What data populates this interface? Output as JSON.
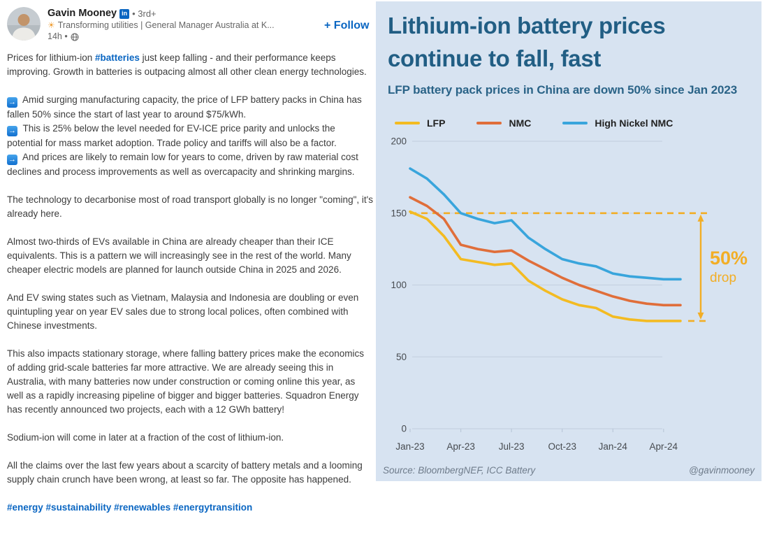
{
  "post": {
    "brand_color": "#0a66c2",
    "arrow_glyph": "→",
    "author": {
      "name": "Gavin Mooney",
      "badge": "in",
      "degree": "• 3rd+",
      "headline": "Transforming utilities | General Manager Australia at K...",
      "time": "14h •"
    },
    "follow_label": "+ Follow",
    "blocks": [
      {
        "spaced": true,
        "seg": [
          {
            "t": "x",
            "s": "Prices for lithium-ion "
          },
          {
            "t": "l",
            "s": "#batteries"
          },
          {
            "t": "x",
            "s": " just keep falling - and their performance keeps improving. Growth in batteries is outpacing almost all other clean energy technologies."
          }
        ]
      },
      {
        "spaced": false,
        "seg": [
          {
            "t": "a"
          },
          {
            "t": "x",
            "s": " Amid surging manufacturing capacity, the price of LFP battery packs in China has fallen 50% since the start of last year to around $75/kWh."
          }
        ]
      },
      {
        "spaced": false,
        "seg": [
          {
            "t": "a"
          },
          {
            "t": "x",
            "s": " This is 25% below the level needed for EV-ICE price parity and unlocks the potential for mass market adoption. Trade policy and tariffs will also be a factor."
          }
        ]
      },
      {
        "spaced": true,
        "seg": [
          {
            "t": "a"
          },
          {
            "t": "x",
            "s": " And prices are likely to remain low for years to come, driven by raw material cost declines and process improvements as well as overcapacity and shrinking margins."
          }
        ]
      },
      {
        "spaced": true,
        "seg": [
          {
            "t": "x",
            "s": "The technology to decarbonise most of road transport globally is no longer \"coming\", it's already here."
          }
        ]
      },
      {
        "spaced": true,
        "seg": [
          {
            "t": "x",
            "s": "Almost two-thirds of EVs available in China are already cheaper than their ICE equivalents. This is a pattern we will increasingly see in the rest of the world. Many cheaper electric models are planned for launch outside China in 2025 and 2026."
          }
        ]
      },
      {
        "spaced": true,
        "seg": [
          {
            "t": "x",
            "s": "And EV swing states such as Vietnam, Malaysia and Indonesia are doubling or even quintupling year on year EV sales due to strong local polices, often combined with Chinese investments."
          }
        ]
      },
      {
        "spaced": true,
        "seg": [
          {
            "t": "x",
            "s": "This also impacts stationary storage, where falling battery prices make the economics of adding grid-scale batteries far more attractive. We are already seeing this in Australia, with many batteries now under construction or coming online this year, as well as a rapidly increasing pipeline of bigger and bigger batteries. Squadron Energy has recently announced two projects, each with a 12 GWh battery!"
          }
        ]
      },
      {
        "spaced": true,
        "seg": [
          {
            "t": "x",
            "s": "Sodium-ion will come in later at a fraction of the cost of lithium-ion."
          }
        ]
      },
      {
        "spaced": true,
        "seg": [
          {
            "t": "x",
            "s": "All the claims over the last few years about a scarcity of battery metals and a looming supply chain crunch have been wrong, at least so far. The opposite has happened."
          }
        ]
      },
      {
        "spaced": false,
        "seg": [
          {
            "t": "l",
            "s": "#energy"
          },
          {
            "t": "x",
            "s": " "
          },
          {
            "t": "l",
            "s": "#sustainability"
          },
          {
            "t": "x",
            "s": " "
          },
          {
            "t": "l",
            "s": "#renewables"
          },
          {
            "t": "x",
            "s": " "
          },
          {
            "t": "l",
            "s": "#energytransition"
          }
        ]
      }
    ]
  },
  "chart_data": {
    "type": "line",
    "title": "Lithium-ion battery prices continue to fall, fast",
    "subtitle": "LFP battery pack prices in China are down 50% since Jan 2023",
    "background": "#d7e3f1",
    "title_color": "#215e84",
    "grid": true,
    "legend_position": "top",
    "xlabel": "",
    "ylabel": "",
    "ylim": [
      0,
      200
    ],
    "yticks": [
      0,
      50,
      100,
      150,
      200
    ],
    "x": [
      "Jan-23",
      "Feb-23",
      "Mar-23",
      "Apr-23",
      "May-23",
      "Jun-23",
      "Jul-23",
      "Aug-23",
      "Sep-23",
      "Oct-23",
      "Nov-23",
      "Dec-23",
      "Jan-24",
      "Feb-24",
      "Mar-24",
      "Apr-24",
      "May-24"
    ],
    "x_tick_labels": [
      "Jan-23",
      "Apr-23",
      "Jul-23",
      "Oct-23",
      "Jan-24",
      "Apr-24"
    ],
    "series": [
      {
        "name": "LFP",
        "color": "#f3bb22",
        "values": [
          151,
          146,
          134,
          118,
          116,
          114,
          115,
          103,
          96,
          90,
          86,
          84,
          78,
          76,
          75,
          75,
          75
        ]
      },
      {
        "name": "NMC",
        "color": "#e06e3a",
        "values": [
          161,
          155,
          146,
          128,
          125,
          123,
          124,
          117,
          111,
          105,
          100,
          96,
          92,
          89,
          87,
          86,
          86
        ]
      },
      {
        "name": "High Nickel NMC",
        "color": "#39a5dc",
        "values": [
          181,
          174,
          163,
          150,
          146,
          143,
          145,
          133,
          125,
          118,
          115,
          113,
          108,
          106,
          105,
          104,
          104
        ]
      }
    ],
    "annotation": {
      "label_main": "50%",
      "label_sub": "drop",
      "ref_high": 150,
      "ref_low": 75,
      "color": "#f2ae26"
    },
    "source": "Source: BloombergNEF, ICC Battery",
    "credit": "@gavinmooney"
  }
}
